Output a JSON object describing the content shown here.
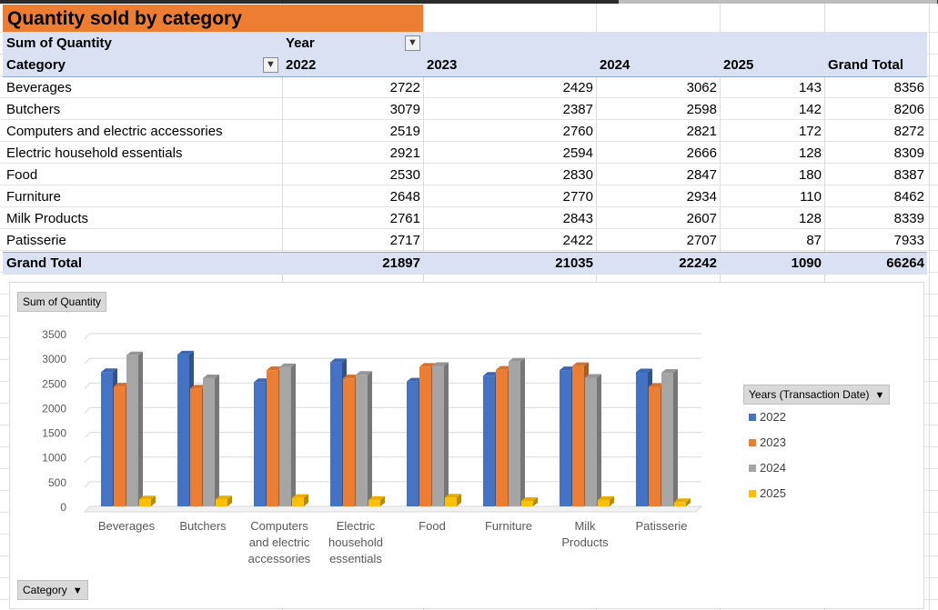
{
  "title": "Quantity sold by category",
  "pivot": {
    "values_label": "Sum of Quantity",
    "column_field": "Year",
    "row_field": "Category",
    "columns": [
      "2022",
      "2023",
      "2024",
      "2025",
      "Grand Total"
    ],
    "rows": [
      {
        "category": "Beverages",
        "values": [
          "2722",
          "2429",
          "3062",
          "143",
          "8356"
        ]
      },
      {
        "category": "Butchers",
        "values": [
          "3079",
          "2387",
          "2598",
          "142",
          "8206"
        ]
      },
      {
        "category": "Computers and electric accessories",
        "values": [
          "2519",
          "2760",
          "2821",
          "172",
          "8272"
        ]
      },
      {
        "category": "Electric household essentials",
        "values": [
          "2921",
          "2594",
          "2666",
          "128",
          "8309"
        ]
      },
      {
        "category": "Food",
        "values": [
          "2530",
          "2830",
          "2847",
          "180",
          "8387"
        ]
      },
      {
        "category": "Furniture",
        "values": [
          "2648",
          "2770",
          "2934",
          "110",
          "8462"
        ]
      },
      {
        "category": "Milk Products",
        "values": [
          "2761",
          "2843",
          "2607",
          "128",
          "8339"
        ]
      },
      {
        "category": "Patisserie",
        "values": [
          "2717",
          "2422",
          "2707",
          "87",
          "7933"
        ]
      }
    ],
    "grand_total": {
      "label": "Grand Total",
      "values": [
        "21897",
        "21035",
        "22242",
        "1090",
        "66264"
      ]
    }
  },
  "chart_data": {
    "type": "bar",
    "values_button": "Sum of Quantity",
    "axis_button": "Category",
    "legend_title": "Years (Transaction Date)",
    "legend_placement": "right",
    "grid": true,
    "ylim": [
      0,
      3500
    ],
    "yticks": [
      "0",
      "500",
      "1000",
      "1500",
      "2000",
      "2500",
      "3000",
      "3500"
    ],
    "category_labels": [
      [
        "Beverages"
      ],
      [
        "Butchers"
      ],
      [
        "Computers",
        "and electric",
        "accessories"
      ],
      [
        "Electric",
        "household",
        "essentials"
      ],
      [
        "Food"
      ],
      [
        "Furniture"
      ],
      [
        "Milk",
        "Products"
      ],
      [
        "Patisserie"
      ]
    ],
    "series": [
      {
        "name": "2022",
        "color": "#4472c4",
        "values": [
          2722,
          3079,
          2519,
          2921,
          2530,
          2648,
          2761,
          2717
        ]
      },
      {
        "name": "2023",
        "color": "#ed7d31",
        "values": [
          2429,
          2387,
          2760,
          2594,
          2830,
          2770,
          2843,
          2422
        ]
      },
      {
        "name": "2024",
        "color": "#a5a5a5",
        "values": [
          3062,
          2598,
          2821,
          2666,
          2847,
          2934,
          2607,
          2707
        ]
      },
      {
        "name": "2025",
        "color": "#ffc000",
        "values": [
          143,
          142,
          172,
          128,
          180,
          110,
          128,
          87
        ]
      }
    ]
  },
  "icons": {
    "filter": "filter-icon",
    "dropdown": "dropdown-filter-icon"
  }
}
